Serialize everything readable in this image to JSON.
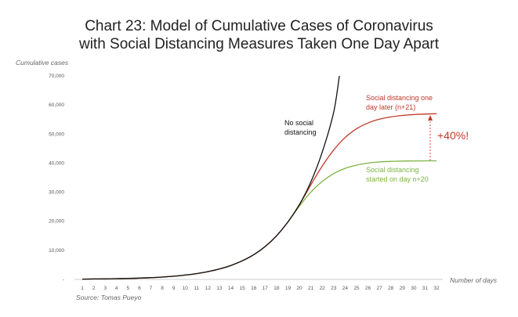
{
  "chart_data": {
    "type": "line",
    "title_line1": "Chart 23: Model of Cumulative Cases of Coronavirus",
    "title_line2": "with Social Distancing Measures Taken One Day Apart",
    "ylabel": "Cumulative cases",
    "xlabel": "Number of days",
    "source": "Source: Tomas Pueyo",
    "ylim": [
      0,
      70000
    ],
    "xlim": [
      1,
      32
    ],
    "ytick_labels": [
      "-",
      "10,000",
      "20,000",
      "30,000",
      "40,000",
      "50,000",
      "60,000",
      "70,000"
    ],
    "ytick_values": [
      0,
      10000,
      20000,
      30000,
      40000,
      50000,
      60000,
      70000
    ],
    "x": [
      1,
      2,
      3,
      4,
      5,
      6,
      7,
      8,
      9,
      10,
      11,
      12,
      13,
      14,
      15,
      16,
      17,
      18,
      19,
      20,
      21,
      22,
      23,
      24,
      25,
      26,
      27,
      28,
      29,
      30,
      31,
      32
    ],
    "grid": false,
    "series": [
      {
        "name": "No social distancing",
        "color": "#111111",
        "x": [
          1,
          2,
          3,
          4,
          5,
          6,
          7,
          8,
          9,
          10,
          11,
          12,
          13,
          14,
          15,
          16,
          17,
          18,
          19,
          20,
          21,
          22,
          23,
          23.5
        ],
        "values": [
          100,
          150,
          200,
          260,
          340,
          450,
          600,
          800,
          1100,
          1500,
          2000,
          2700,
          3600,
          4800,
          6400,
          8500,
          11300,
          15000,
          19800,
          25700,
          33500,
          43800,
          57500,
          70000
        ]
      },
      {
        "name": "Social distancing one day later (n+21)",
        "color": "#c0392b",
        "x": [
          1,
          2,
          3,
          4,
          5,
          6,
          7,
          8,
          9,
          10,
          11,
          12,
          13,
          14,
          15,
          16,
          17,
          18,
          19,
          20,
          21,
          22,
          23,
          24,
          25,
          26,
          27,
          28,
          29,
          30,
          31,
          32
        ],
        "values": [
          100,
          150,
          200,
          260,
          340,
          450,
          600,
          800,
          1100,
          1500,
          2000,
          2700,
          3600,
          4800,
          6400,
          8500,
          11300,
          15000,
          19800,
          25700,
          32500,
          39000,
          44500,
          48800,
          51800,
          53800,
          55100,
          55900,
          56400,
          56700,
          56900,
          57000
        ]
      },
      {
        "name": "Social distancing started on day n+20",
        "color": "#7cb342",
        "x": [
          1,
          2,
          3,
          4,
          5,
          6,
          7,
          8,
          9,
          10,
          11,
          12,
          13,
          14,
          15,
          16,
          17,
          18,
          19,
          20,
          21,
          22,
          23,
          24,
          25,
          26,
          27,
          28,
          29,
          30,
          31,
          32
        ],
        "values": [
          100,
          150,
          200,
          260,
          340,
          450,
          600,
          800,
          1100,
          1500,
          2000,
          2700,
          3600,
          4800,
          6400,
          8500,
          11300,
          15000,
          19800,
          25200,
          30000,
          33700,
          36400,
          38200,
          39300,
          40000,
          40400,
          40600,
          40700,
          40750,
          40780,
          40800
        ]
      }
    ],
    "annotations": {
      "black_label": [
        "No social",
        "distancing"
      ],
      "red_label": [
        "Social distancing one",
        "day later (n+21)"
      ],
      "green_label": [
        "Social distancing",
        "started on day n+20"
      ],
      "increase": "+40%!"
    }
  }
}
